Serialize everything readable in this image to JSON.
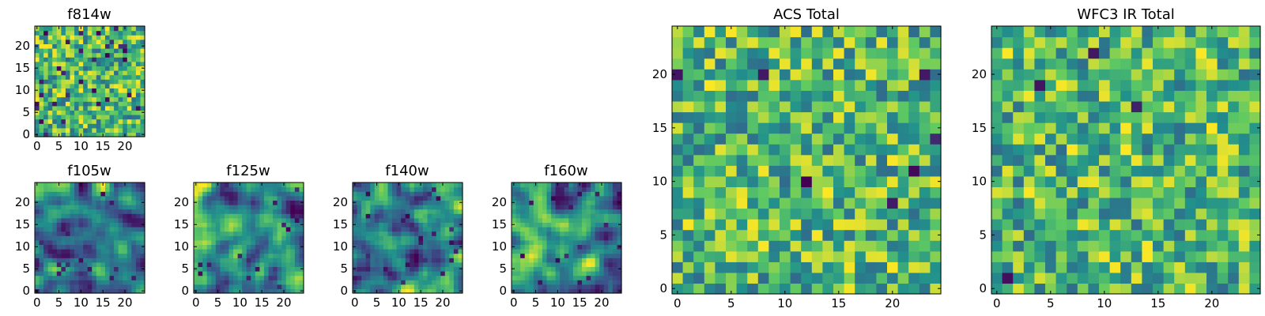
{
  "chart_data": [
    {
      "id": "f814w",
      "type": "heatmap",
      "title": "f814w",
      "grid": 25,
      "xlim": [
        0,
        24
      ],
      "ylim": [
        0,
        24
      ],
      "xticks": [
        0,
        5,
        10,
        15,
        20
      ],
      "yticks": [
        0,
        5,
        10,
        15,
        20
      ],
      "seed": 11,
      "smooth": 0,
      "dark": 0.055
    },
    {
      "id": "f105w",
      "type": "heatmap",
      "title": "f105w",
      "grid": 25,
      "xlim": [
        0,
        24
      ],
      "ylim": [
        0,
        24
      ],
      "xticks": [
        0,
        5,
        10,
        15,
        20
      ],
      "yticks": [
        0,
        5,
        10,
        15,
        20
      ],
      "seed": 23,
      "smooth": 2,
      "dark": 0.02
    },
    {
      "id": "f125w",
      "type": "heatmap",
      "title": "f125w",
      "grid": 25,
      "xlim": [
        0,
        24
      ],
      "ylim": [
        0,
        24
      ],
      "xticks": [
        0,
        5,
        10,
        15,
        20
      ],
      "yticks": [
        0,
        5,
        10,
        15,
        20
      ],
      "seed": 37,
      "smooth": 2,
      "dark": 0.03
    },
    {
      "id": "f140w",
      "type": "heatmap",
      "title": "f140w",
      "grid": 25,
      "xlim": [
        0,
        24
      ],
      "ylim": [
        0,
        24
      ],
      "xticks": [
        0,
        5,
        10,
        15,
        20
      ],
      "yticks": [
        0,
        5,
        10,
        15,
        20
      ],
      "seed": 41,
      "smooth": 2,
      "dark": 0.03
    },
    {
      "id": "f160w",
      "type": "heatmap",
      "title": "f160w",
      "grid": 25,
      "xlim": [
        0,
        24
      ],
      "ylim": [
        0,
        24
      ],
      "xticks": [
        0,
        5,
        10,
        15,
        20
      ],
      "yticks": [
        0,
        5,
        10,
        15,
        20
      ],
      "seed": 53,
      "smooth": 2,
      "dark": 0.035
    },
    {
      "id": "acs-total",
      "type": "heatmap",
      "title": "ACS Total",
      "grid": 25,
      "xlim": [
        0,
        24
      ],
      "ylim": [
        0,
        24
      ],
      "xticks": [
        0,
        5,
        10,
        15,
        20
      ],
      "yticks": [
        0,
        5,
        10,
        15,
        20
      ],
      "seed": 67,
      "smooth": 0,
      "dark": 0.015
    },
    {
      "id": "wfc3-ir-total",
      "type": "heatmap",
      "title": "WFC3 IR Total",
      "grid": 25,
      "xlim": [
        0,
        24
      ],
      "ylim": [
        0,
        24
      ],
      "xticks": [
        0,
        5,
        10,
        15,
        20
      ],
      "yticks": [
        0,
        5,
        10,
        15,
        20
      ],
      "seed": 79,
      "smooth": 0,
      "dark": 0.015
    }
  ],
  "colormap": [
    "#440154",
    "#3b528b",
    "#21918c",
    "#5ec962",
    "#fde725"
  ]
}
